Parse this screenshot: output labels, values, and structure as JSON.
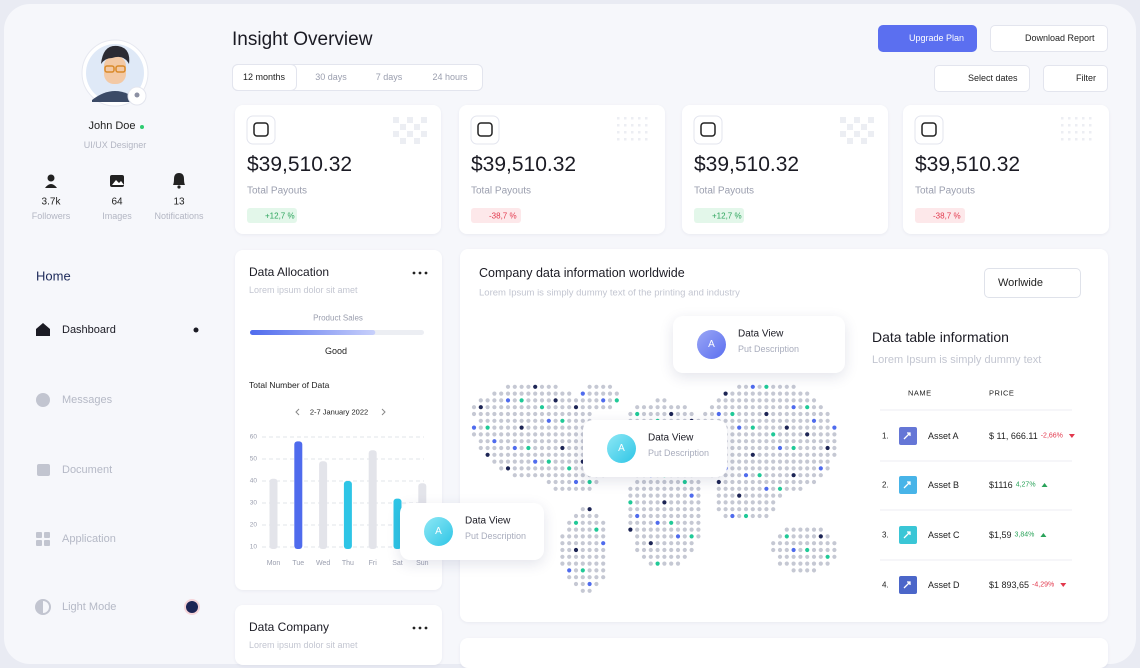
{
  "profile": {
    "name": "John Doe",
    "role": "UI/UX Designer",
    "stats": [
      {
        "value": "3.7k",
        "label": "Followers"
      },
      {
        "value": "64",
        "label": "Images"
      },
      {
        "value": "13",
        "label": "Notifications"
      }
    ]
  },
  "nav": {
    "section": "Home",
    "items": [
      "Dashboard",
      "Messages",
      "Document",
      "Application",
      "Light Mode"
    ]
  },
  "header": {
    "title": "Insight Overview",
    "ranges": [
      "12 months",
      "30 days",
      "7 days",
      "24 hours"
    ],
    "upgrade": "Upgrade Plan",
    "download": "Download Report",
    "dates": "Select dates",
    "filter": "Filter"
  },
  "cards": [
    {
      "amount": "$39,510.32",
      "label": "Total Payouts",
      "change": "+12,7 %"
    },
    {
      "amount": "$39,510.32",
      "label": "Total Payouts",
      "change": "-38,7 %"
    },
    {
      "amount": "$39,510.32",
      "label": "Total Payouts",
      "change": "+12,7 %"
    },
    {
      "amount": "$39,510.32",
      "label": "Total Payouts",
      "change": "-38,7 %"
    }
  ],
  "allocation": {
    "title": "Data Allocation",
    "subtitle": "Lorem ipsum dolor sit amet",
    "progress_label": "Product Sales",
    "progress": 72,
    "progress_status": "Good",
    "chart_title": "Total Number of Data",
    "date_range": "2-7 January 2022",
    "chart": {
      "type": "bar",
      "categories": [
        "Mon",
        "Tue",
        "Wed",
        "Thu",
        "Fri",
        "Sat",
        "Sun"
      ],
      "values": [
        41,
        58,
        49,
        40,
        54,
        32,
        39
      ],
      "colors": [
        "#e3e4ea",
        "#4f6bed",
        "#e3e4ea",
        "#2ec5e6",
        "#e3e4ea",
        "#2ec5e6",
        "#e3e4ea"
      ],
      "ylim": [
        10,
        60
      ],
      "yticks": [
        10,
        20,
        30,
        40,
        50,
        60
      ],
      "grid": true
    }
  },
  "world": {
    "title": "Company data information worldwide",
    "subtitle": "Lorem Ipsum is simply dummy text of the printing and industry",
    "dropdown": "Worlwide",
    "tooltips": [
      {
        "avatar": "A",
        "title": "Data View",
        "subtitle": "Put Description"
      },
      {
        "avatar": "A",
        "title": "Data View",
        "subtitle": "Put Description"
      },
      {
        "avatar": "A",
        "title": "Data View",
        "subtitle": "Put Description"
      }
    ],
    "table_title": "Data table information",
    "table_subtitle": "Lorem Ipsum is simply dummy text",
    "columns": [
      "NAME",
      "PRICE"
    ],
    "rows": [
      {
        "rank": "1.",
        "name": "Asset A",
        "price": "$ 11, 666.11",
        "change": "-2,66%"
      },
      {
        "rank": "2.",
        "name": "Asset B",
        "price": "$1116",
        "change": "4,27%"
      },
      {
        "rank": "3.",
        "name": "Asset C",
        "price": "$1,59",
        "change": "3,84%"
      },
      {
        "rank": "4.",
        "name": "Asset D",
        "price": "$1 893,65",
        "change": "-4,29%"
      }
    ]
  },
  "company": {
    "title": "Data Company",
    "subtitle": "Lorem ipsum dolor sit amet"
  }
}
